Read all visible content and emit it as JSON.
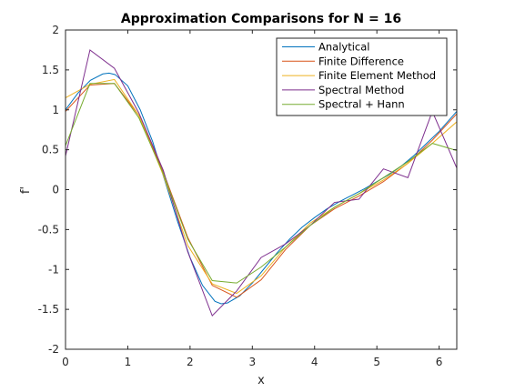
{
  "chart_data": {
    "type": "line",
    "title": "Approximation Comparisons for N = 16",
    "xlabel": "x",
    "ylabel": "f'",
    "xlim": [
      0,
      6.2832
    ],
    "ylim": [
      -2,
      2
    ],
    "xticks": [
      0,
      1,
      2,
      3,
      4,
      5,
      6
    ],
    "yticks": [
      -2,
      -1.5,
      -1,
      -0.5,
      0,
      0.5,
      1,
      1.5,
      2
    ],
    "xtick_labels": [
      "0",
      "1",
      "2",
      "3",
      "4",
      "5",
      "6"
    ],
    "ytick_labels": [
      "-2",
      "-1.5",
      "-1",
      "-0.5",
      "0",
      "0.5",
      "1",
      "1.5",
      "2"
    ],
    "grid": false,
    "legend_position": "top-right",
    "series": [
      {
        "name": "Analytical",
        "color": "#0072bd",
        "x": [
          0,
          0.2,
          0.4,
          0.6,
          0.7,
          0.8,
          1.0,
          1.2,
          1.4,
          1.6,
          1.8,
          2.0,
          2.2,
          2.4,
          2.5,
          2.6,
          2.8,
          3.0,
          3.2,
          3.4,
          3.6,
          3.8,
          4.0,
          4.2,
          4.4,
          4.6,
          4.8,
          5.0,
          5.2,
          5.4,
          5.6,
          5.8,
          6.0,
          6.2832
        ],
        "y": [
          1.0,
          1.21,
          1.37,
          1.45,
          1.46,
          1.44,
          1.3,
          1.0,
          0.6,
          0.1,
          -0.4,
          -0.85,
          -1.2,
          -1.4,
          -1.43,
          -1.42,
          -1.33,
          -1.17,
          -0.98,
          -0.79,
          -0.62,
          -0.47,
          -0.35,
          -0.24,
          -0.15,
          -0.07,
          0.01,
          0.1,
          0.19,
          0.3,
          0.43,
          0.58,
          0.73,
          0.98
        ]
      },
      {
        "name": "Finite Difference",
        "color": "#d95319",
        "x": [
          0,
          0.3927,
          0.7854,
          1.1781,
          1.5708,
          1.9635,
          2.3562,
          2.7489,
          3.1416,
          3.5343,
          3.927,
          4.3197,
          4.7124,
          5.1051,
          5.4978,
          5.8905,
          6.2832
        ],
        "y": [
          0.98,
          1.31,
          1.33,
          0.93,
          0.22,
          -0.6,
          -1.2,
          -1.35,
          -1.13,
          -0.75,
          -0.45,
          -0.24,
          -0.08,
          0.1,
          0.33,
          0.62,
          0.95
        ]
      },
      {
        "name": "Finite Element Method",
        "color": "#edb120",
        "x": [
          0,
          0.3927,
          0.7854,
          1.1781,
          1.5708,
          1.9635,
          2.3562,
          2.7489,
          3.1416,
          3.5343,
          3.927,
          4.3197,
          4.7124,
          5.1051,
          5.4978,
          5.8905,
          6.2832
        ],
        "y": [
          1.15,
          1.32,
          1.38,
          0.93,
          0.18,
          -0.7,
          -1.18,
          -1.3,
          -1.08,
          -0.72,
          -0.42,
          -0.22,
          -0.05,
          0.12,
          0.33,
          0.58,
          0.85
        ]
      },
      {
        "name": "Spectral Method",
        "color": "#7e2f8e",
        "x": [
          0,
          0.3927,
          0.7854,
          1.1781,
          1.5708,
          1.9635,
          2.3562,
          2.7489,
          3.1416,
          3.5343,
          3.927,
          4.3197,
          4.7124,
          5.1051,
          5.4978,
          5.8905,
          6.2832
        ],
        "y": [
          0.42,
          1.75,
          1.52,
          0.96,
          0.24,
          -0.78,
          -1.58,
          -1.27,
          -0.85,
          -0.68,
          -0.45,
          -0.16,
          -0.12,
          0.26,
          0.15,
          0.98,
          0.27
        ]
      },
      {
        "name": "Spectral + Hann",
        "color": "#77ac30",
        "x": [
          0,
          0.3927,
          0.7854,
          1.1781,
          1.5708,
          1.9635,
          2.3562,
          2.7489,
          3.1416,
          3.5343,
          3.927,
          4.3197,
          4.7124,
          5.1051,
          5.4978,
          5.8905,
          6.2832
        ],
        "y": [
          0.55,
          1.33,
          1.33,
          0.9,
          0.2,
          -0.62,
          -1.14,
          -1.17,
          -0.97,
          -0.72,
          -0.45,
          -0.22,
          -0.05,
          0.15,
          0.35,
          0.58,
          0.49
        ]
      }
    ]
  }
}
